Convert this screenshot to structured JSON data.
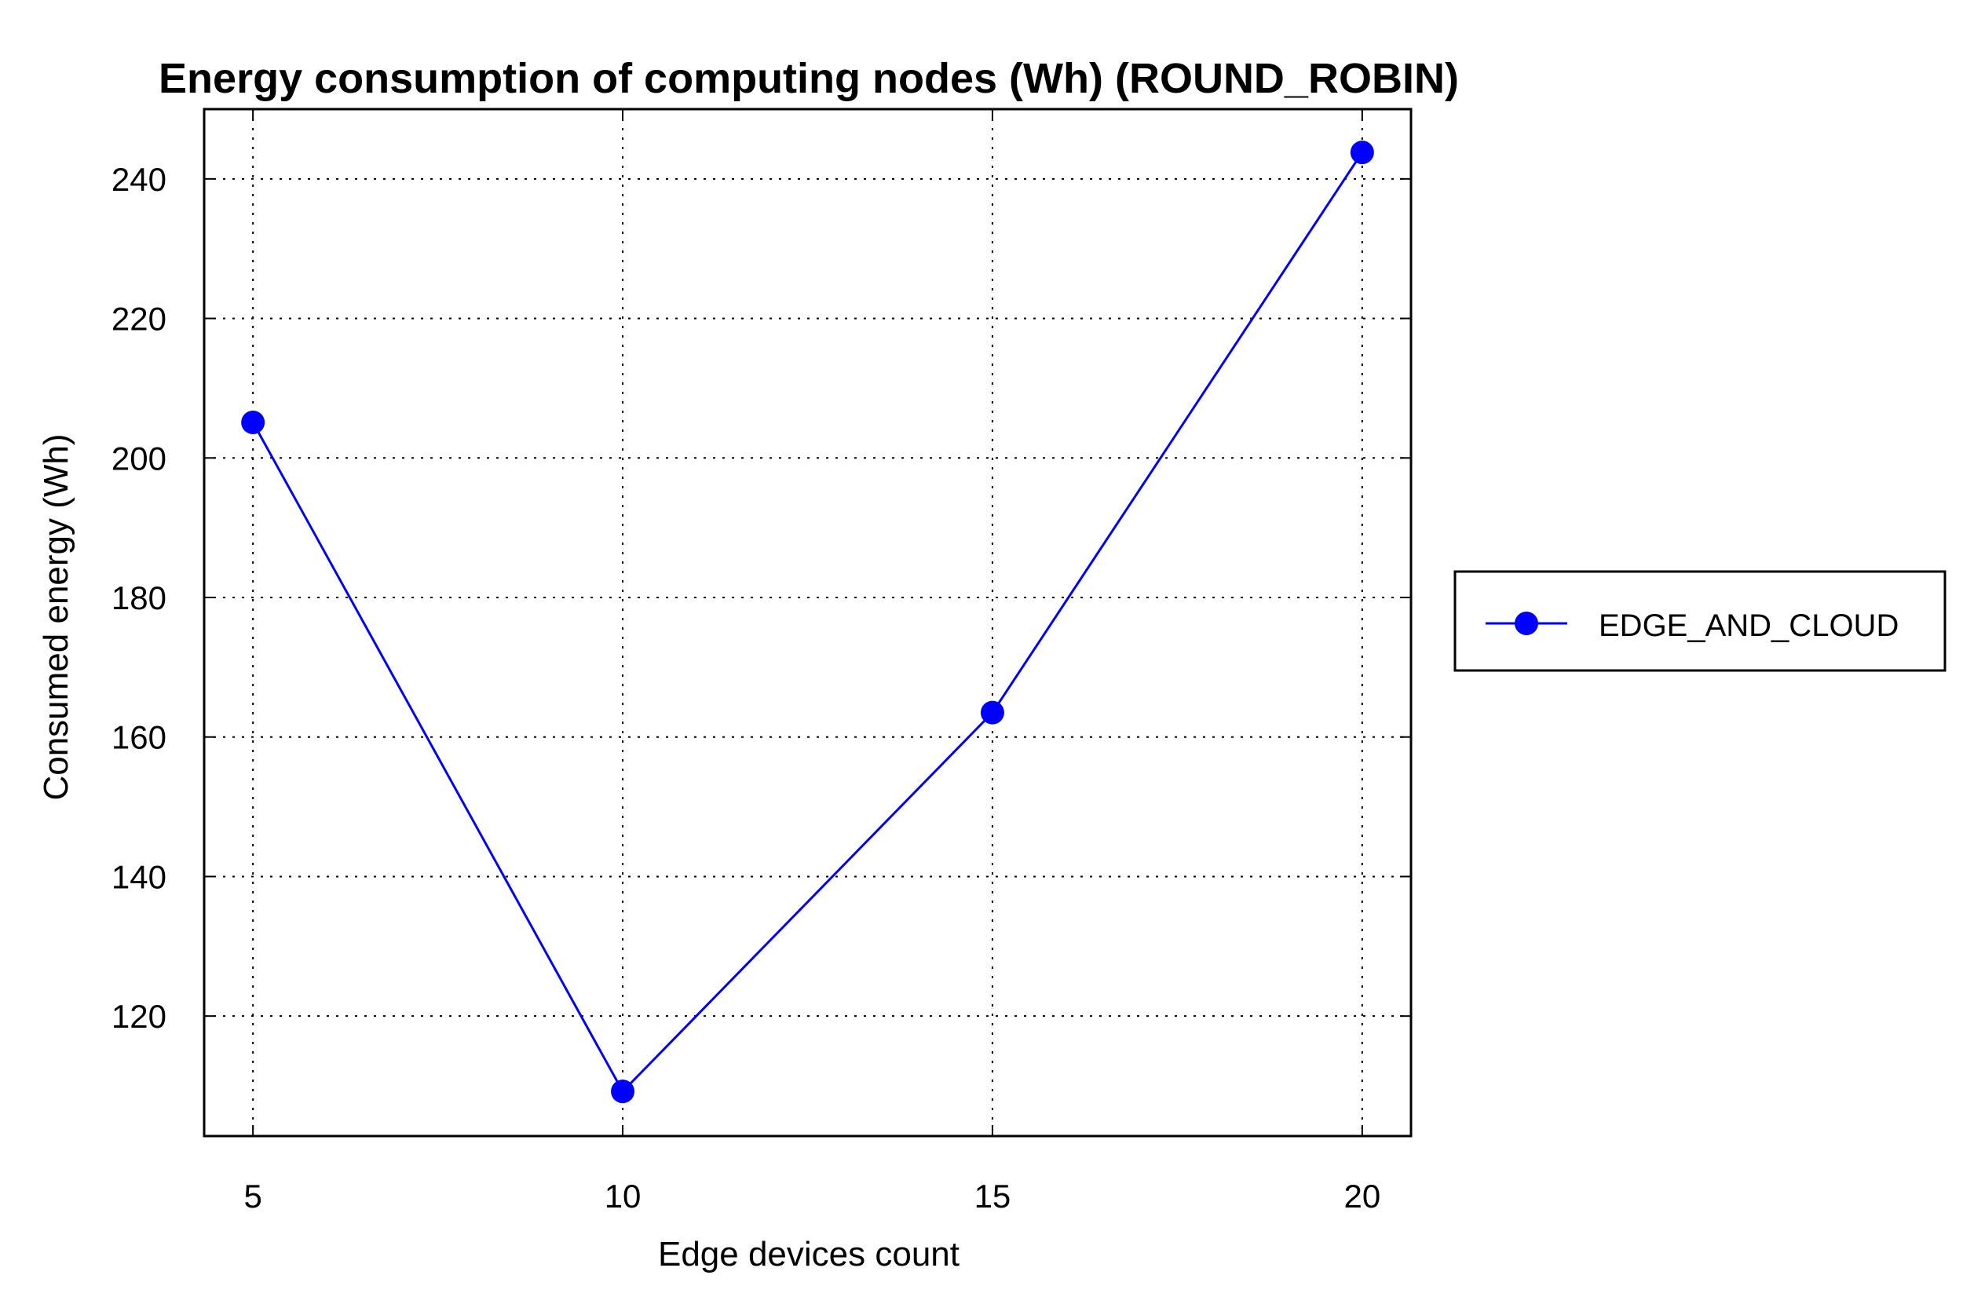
{
  "chart_data": {
    "type": "line",
    "title": "Energy consumption of computing nodes (Wh) (ROUND_ROBIN)",
    "xlabel": "Edge devices count",
    "ylabel": "Consumed energy (Wh)",
    "x": [
      5,
      10,
      15,
      20
    ],
    "xticks": [
      "5",
      "10",
      "15",
      "20"
    ],
    "xlim": [
      4.34,
      20.66
    ],
    "yticks": [
      "120",
      "140",
      "160",
      "180",
      "200",
      "220",
      "240"
    ],
    "ytick_values": [
      120,
      140,
      160,
      180,
      200,
      220,
      240
    ],
    "ylim": [
      102.8,
      250
    ],
    "grid": true,
    "legend_position": "right",
    "series": [
      {
        "name": "EDGE_AND_CLOUD",
        "values": [
          205.1,
          109.2,
          163.5,
          243.8
        ],
        "color": "#0000ff"
      }
    ]
  }
}
